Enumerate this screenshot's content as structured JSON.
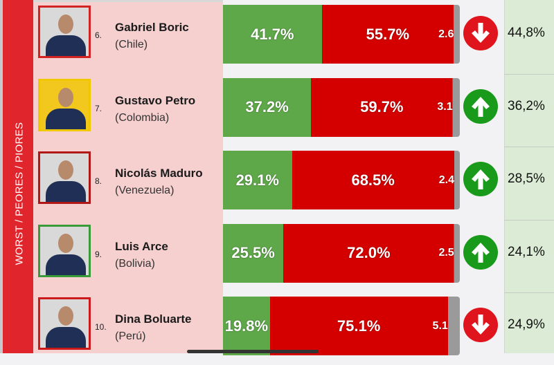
{
  "chart_data": {
    "type": "bar",
    "orientation": "horizontal-stacked",
    "side_label": "WORST / PEORES / PIORES",
    "colors": {
      "approve": "#5fa84a",
      "disapprove": "#d40000",
      "other": "#9a9a9a",
      "up": "#1a9a1a",
      "down": "#e0141c"
    },
    "rows": [
      {
        "rank": "6.",
        "name": "Gabriel Boric",
        "country": "(Chile)",
        "approve": 41.7,
        "approve_label": "41.7%",
        "disapprove": 55.7,
        "disapprove_label": "55.7%",
        "other": 2.6,
        "other_label": "2.6",
        "trend": "down",
        "trend_icon": "arrow-down-icon",
        "previous": "44,8%",
        "frame": "#d22222"
      },
      {
        "rank": "7.",
        "name": "Gustavo Petro",
        "country": "(Colombia)",
        "approve": 37.2,
        "approve_label": "37.2%",
        "disapprove": 59.7,
        "disapprove_label": "59.7%",
        "other": 3.1,
        "other_label": "3.1",
        "trend": "up",
        "trend_icon": "arrow-up-icon",
        "previous": "36,2%",
        "frame": "#f0c800"
      },
      {
        "rank": "8.",
        "name": "Nicolás Maduro",
        "country": "(Venezuela)",
        "approve": 29.1,
        "approve_label": "29.1%",
        "disapprove": 68.5,
        "disapprove_label": "68.5%",
        "other": 2.4,
        "other_label": "2.4",
        "trend": "up",
        "trend_icon": "arrow-up-icon",
        "previous": "28,5%",
        "frame": "#b01818"
      },
      {
        "rank": "9.",
        "name": "Luis Arce",
        "country": "(Bolivia)",
        "approve": 25.5,
        "approve_label": "25.5%",
        "disapprove": 72.0,
        "disapprove_label": "72.0%",
        "other": 2.5,
        "other_label": "2.5",
        "trend": "up",
        "trend_icon": "arrow-up-icon",
        "previous": "24,1%",
        "frame": "#3a9a3a"
      },
      {
        "rank": "10.",
        "name": "Dina Boluarte",
        "country": "(Perú)",
        "approve": 19.8,
        "approve_label": "19.8%",
        "disapprove": 75.1,
        "disapprove_label": "75.1%",
        "other": 5.1,
        "other_label": "5.1",
        "trend": "down",
        "trend_icon": "arrow-down-icon",
        "previous": "24,9%",
        "frame": "#cc1a1a"
      }
    ]
  }
}
